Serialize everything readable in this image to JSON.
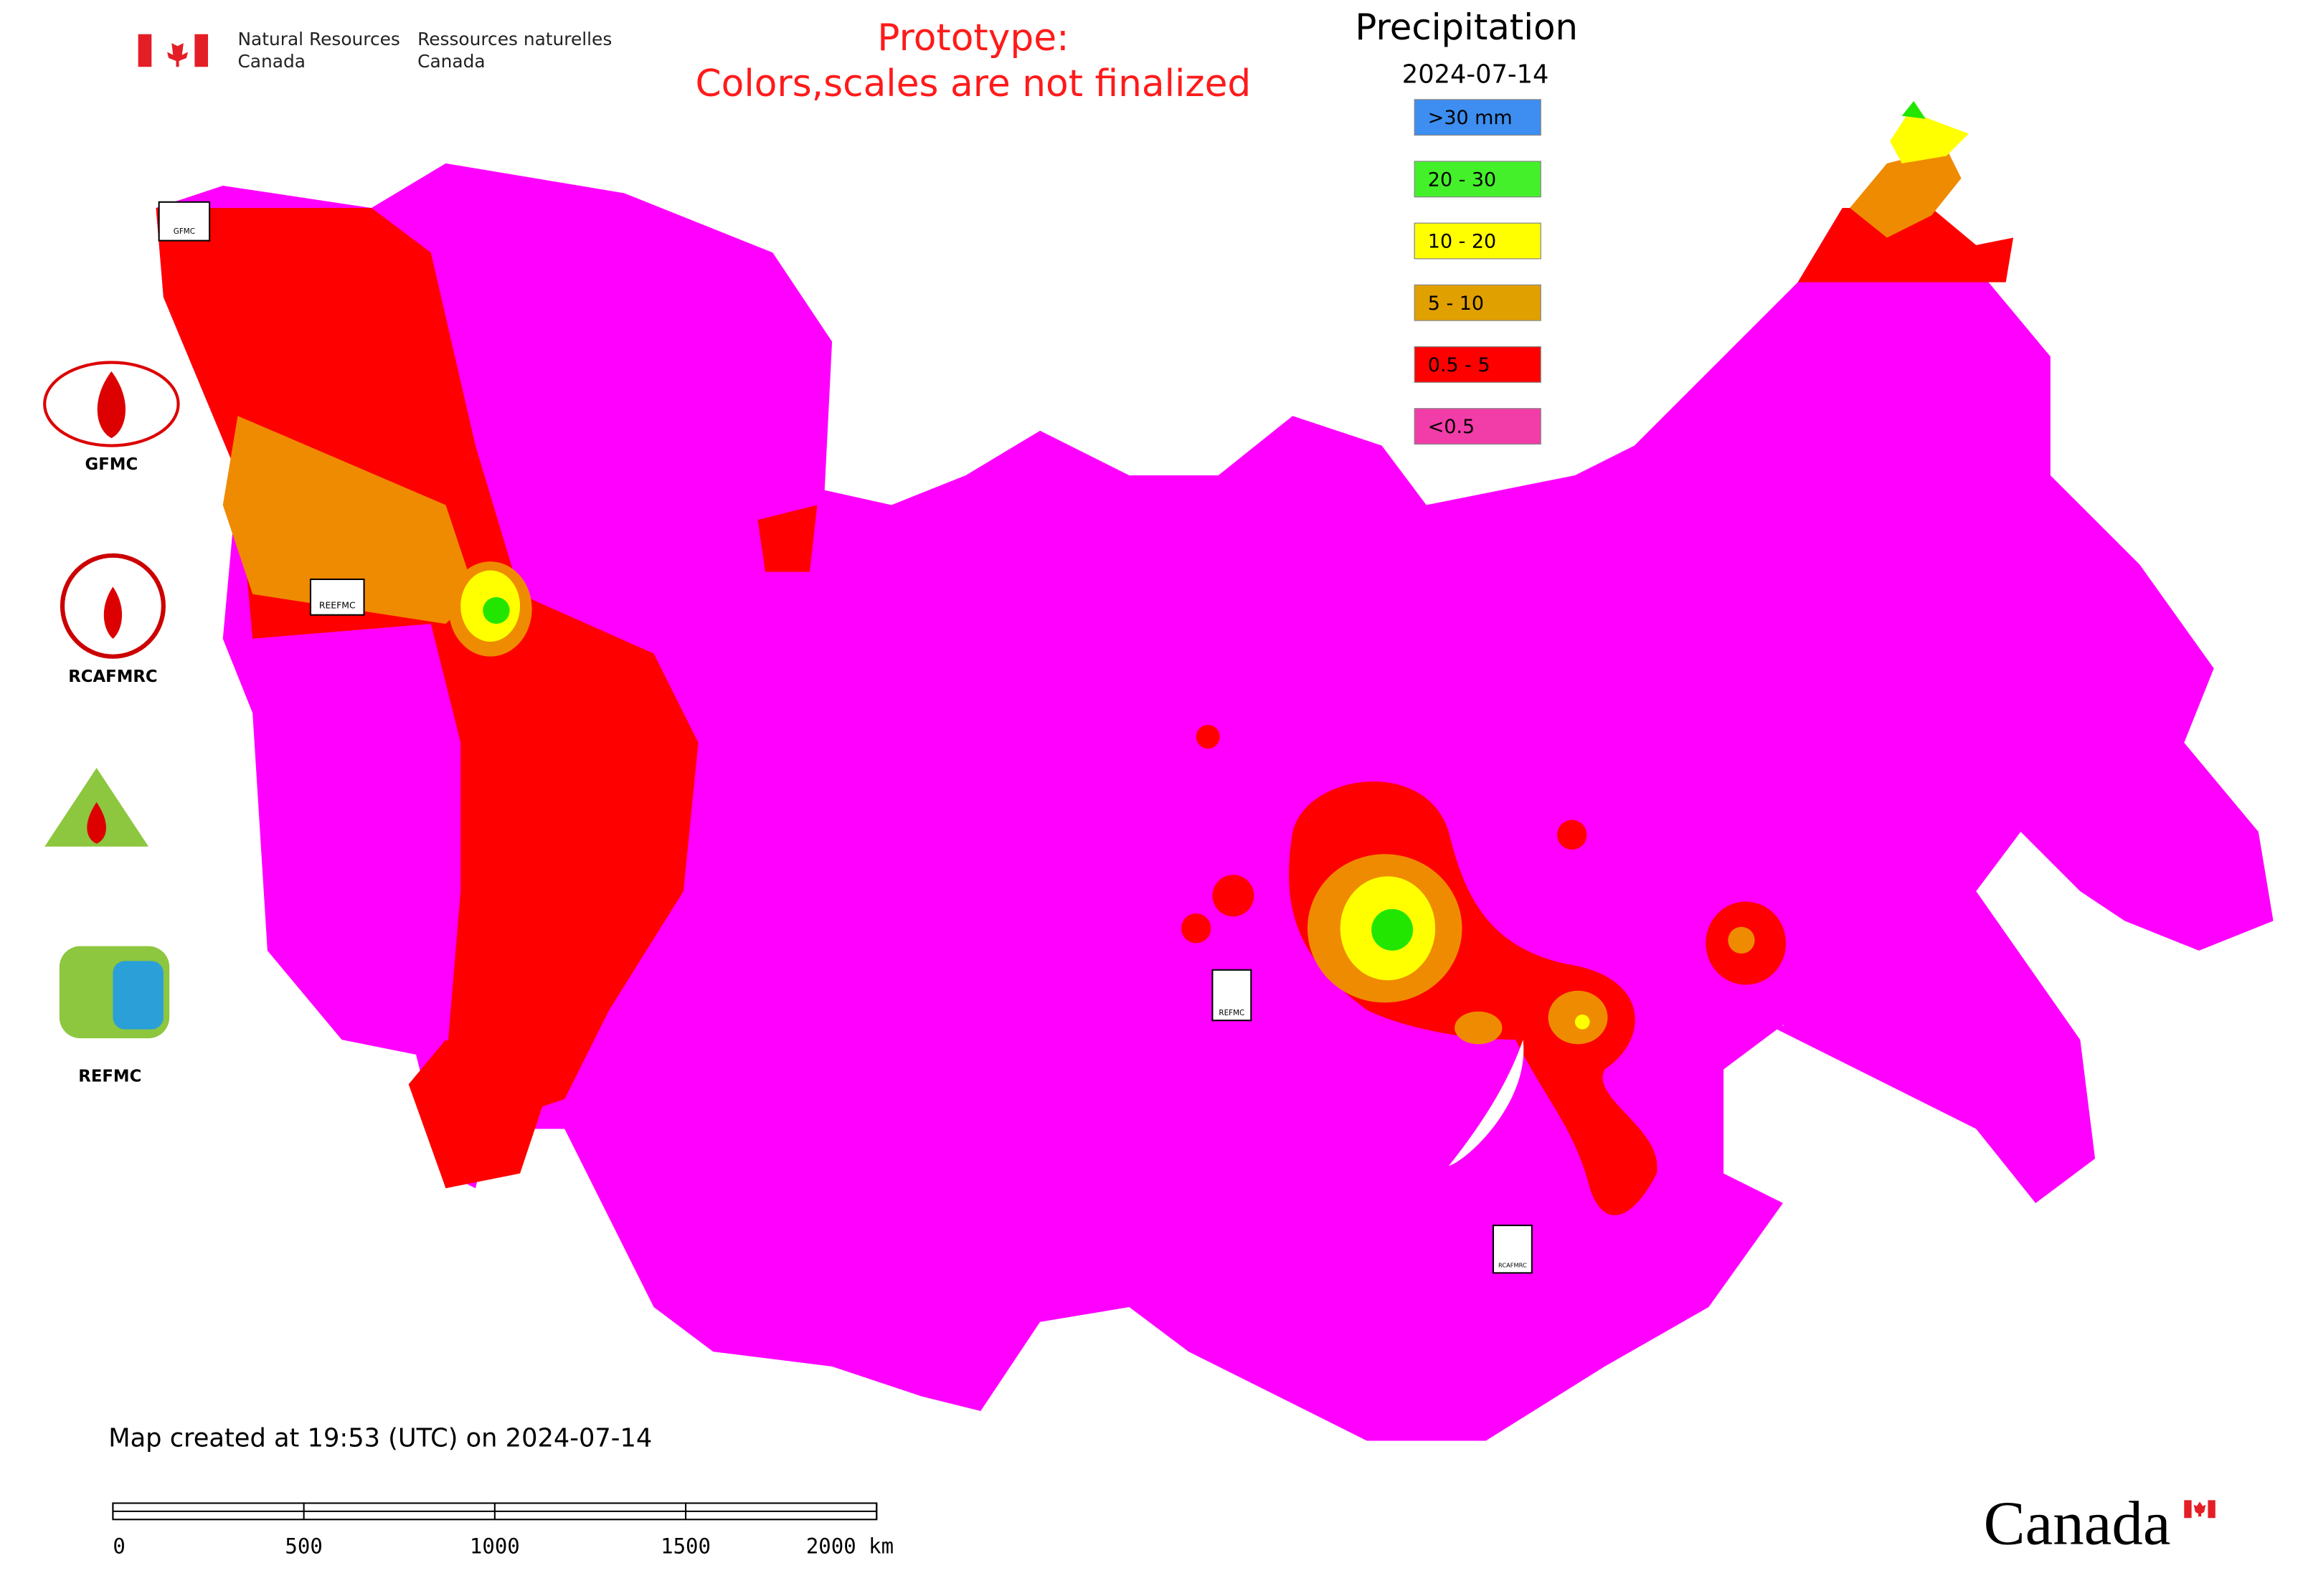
{
  "header": {
    "department_en": [
      "Natural Resources",
      "Canada"
    ],
    "department_fr": [
      "Ressources naturelles",
      "Canada"
    ]
  },
  "notice": [
    "Prototype:",
    "Colors,scales are not finalized"
  ],
  "legend": {
    "title": "Precipitation",
    "date": "2024-07-14",
    "items": [
      {
        "label": ">30 mm",
        "color": "#3d8ef0"
      },
      {
        "label": "20 - 30",
        "color": "#44f02a"
      },
      {
        "label": "10 - 20",
        "color": "#ffff00"
      },
      {
        "label": "5 - 10",
        "color": "#e0a000"
      },
      {
        "label": "0.5 - 5",
        "color": "#ff0000"
      },
      {
        "label": "<0.5",
        "color": "#f23ca8"
      }
    ]
  },
  "side_logos": [
    "GFMC",
    "RCAFMRC",
    "REFMC"
  ],
  "map_markers": [
    "GFMC",
    "REEFMC",
    "REFMC",
    "RCAFMRC"
  ],
  "footer": {
    "created": "Map created at 19:53 (UTC) on 2024-07-14",
    "scale_labels": [
      "0",
      "500",
      "1000",
      "1500",
      "2000 km"
    ],
    "wordmark": "Canada"
  }
}
